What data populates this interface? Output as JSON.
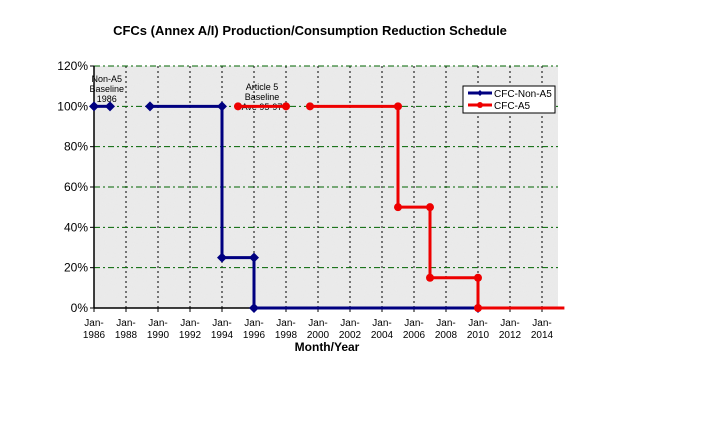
{
  "chart_data": {
    "type": "line",
    "title": "CFCs (Annex A/I) Production/Consumption Reduction Schedule",
    "xlabel": "Month/Year",
    "ylabel": "",
    "xlim": [
      1986,
      2015
    ],
    "ylim": [
      0,
      120
    ],
    "x_ticks": [
      1986,
      1988,
      1990,
      1992,
      1994,
      1996,
      1998,
      2000,
      2002,
      2004,
      2006,
      2008,
      2010,
      2012,
      2014
    ],
    "x_tick_labels": [
      "Jan-\n1986",
      "Jan-\n1988",
      "Jan-\n1990",
      "Jan-\n1992",
      "Jan-\n1994",
      "Jan-\n1996",
      "Jan-\n1998",
      "Jan-\n2000",
      "Jan-\n2002",
      "Jan-\n2004",
      "Jan-\n2006",
      "Jan-\n2008",
      "Jan-\n2010",
      "Jan-\n2012",
      "Jan-\n2014"
    ],
    "y_ticks": [
      0,
      20,
      40,
      60,
      80,
      100,
      120
    ],
    "y_tick_labels": [
      "0%",
      "20%",
      "40%",
      "60%",
      "80%",
      "100%",
      "120%"
    ],
    "grid": true,
    "legend_position": "top-right",
    "annotations": [
      {
        "text": [
          "Non-A5",
          "Baseline",
          "1986"
        ],
        "x": 1986.8,
        "y": 112
      },
      {
        "text": [
          "Article 5",
          "Baseline",
          "Ave 95-97"
        ],
        "x": 1996.5,
        "y": 108
      }
    ],
    "series": [
      {
        "name": "CFC-Non-A5",
        "color": "#000080",
        "segments": [
          [
            [
              1986,
              100
            ],
            [
              1987,
              100
            ]
          ],
          [
            [
              1989.5,
              100
            ],
            [
              1994,
              100
            ],
            [
              1994,
              25
            ],
            [
              1996,
              25
            ],
            [
              1996,
              0
            ],
            [
              2010,
              0
            ]
          ]
        ]
      },
      {
        "name": "CFC-A5",
        "color": "#ee0000",
        "segments": [
          [
            [
              1995,
              100
            ],
            [
              1998,
              100
            ]
          ],
          [
            [
              1999.5,
              100
            ],
            [
              2005,
              100
            ],
            [
              2005,
              50
            ],
            [
              2007,
              50
            ],
            [
              2007,
              15
            ],
            [
              2010,
              15
            ],
            [
              2010,
              0
            ],
            [
              2015.4,
              0,
              "nomarker"
            ]
          ]
        ]
      }
    ]
  }
}
